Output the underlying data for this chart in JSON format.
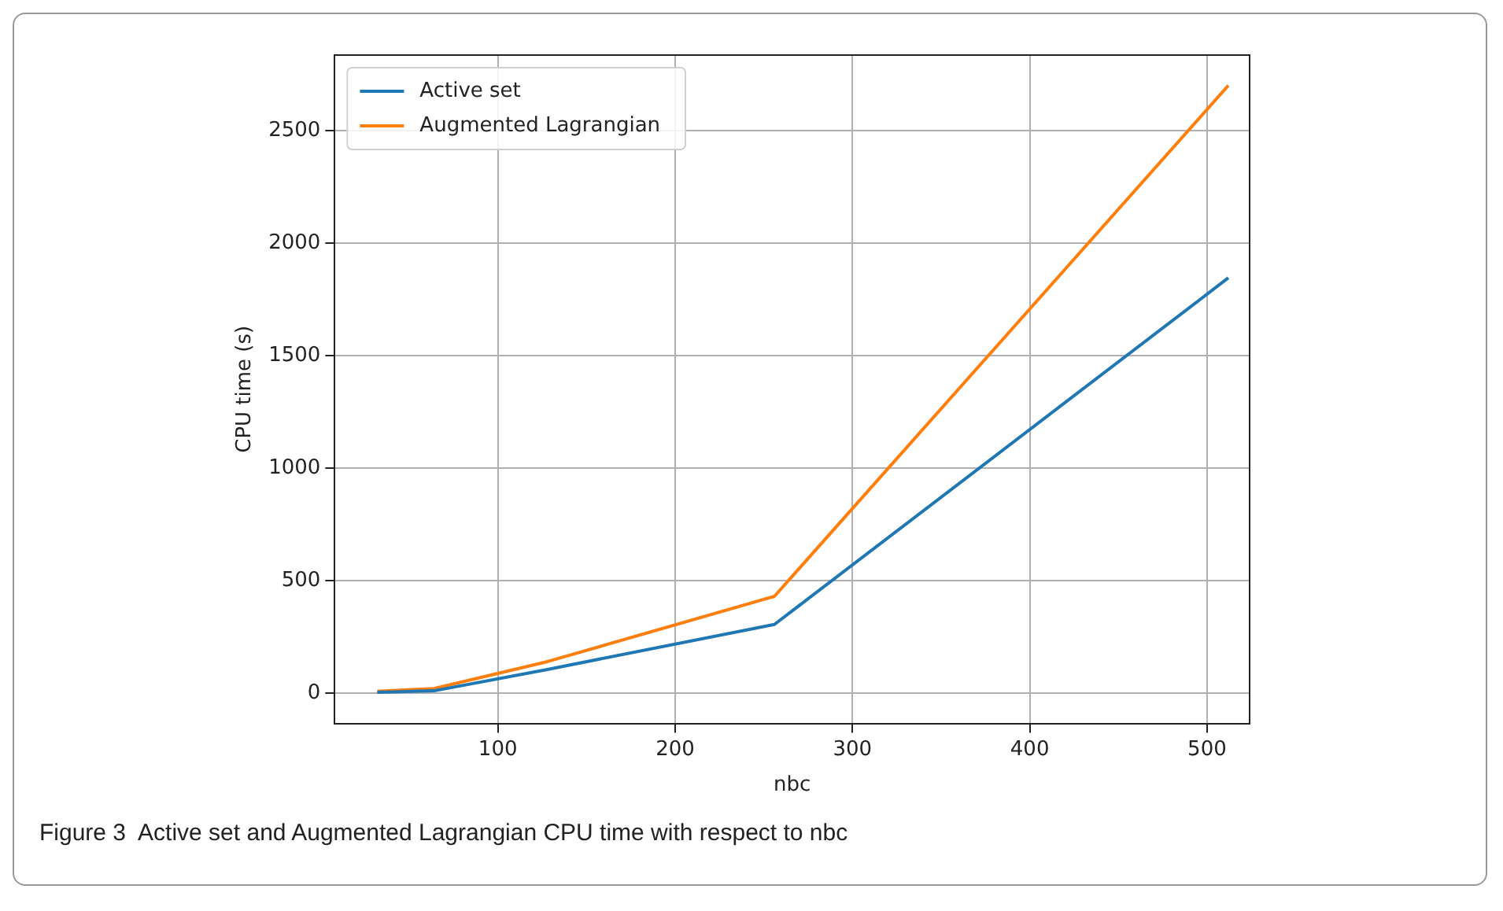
{
  "chart_data": {
    "type": "line",
    "xlabel": "nbc",
    "ylabel": "CPU time (s)",
    "x": [
      32,
      64,
      128,
      256,
      512
    ],
    "series": [
      {
        "name": "Active set",
        "color": "#1f77b4",
        "values": [
          3,
          10,
          105,
          305,
          1845
        ]
      },
      {
        "name": "Augmented Lagrangian",
        "color": "#ff7f0e",
        "values": [
          8,
          20,
          140,
          430,
          2700
        ]
      }
    ],
    "xlim": [
      8,
      524
    ],
    "xticks": [
      100,
      200,
      300,
      400,
      500
    ],
    "ylim": [
      -135,
      2835
    ],
    "yticks": [
      0,
      500,
      1000,
      1500,
      2000,
      2500
    ],
    "grid": true,
    "legend": "top left",
    "marker": "none",
    "line_style": "solid",
    "annotations": [
      "Figure 3  Active set and Augmented Lagrangian CPU time with respect to nbc"
    ]
  }
}
